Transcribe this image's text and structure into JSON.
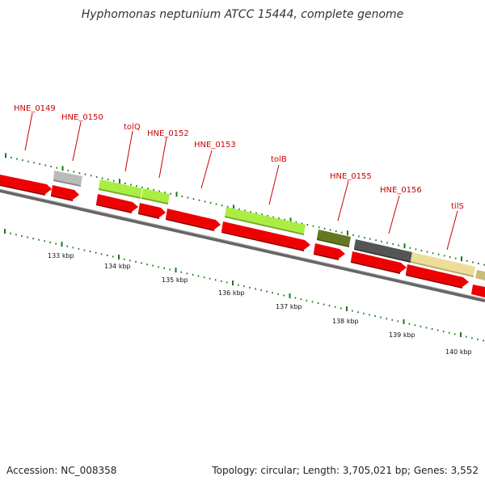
{
  "title": "Hyphomonas neptunium ATCC 15444, complete genome",
  "footer": {
    "accession": "Accession: NC_008358",
    "summary": "Topology: circular; Length: 3,705,021 bp; Genes: 3,552"
  },
  "colors": {
    "cds": "#ee0000",
    "backbone": "#777777",
    "tick": "#1a7a1a",
    "label": "#cc0000",
    "feature_grey": "#bbbbbb",
    "feature_lime": "#aaee44",
    "feature_olive": "#667722",
    "feature_dark": "#555555",
    "feature_cream": "#eedd99"
  },
  "gene_labels": [
    "HNE_0149",
    "HNE_0150",
    "tolQ",
    "HNE_0152",
    "HNE_0153",
    "tolB",
    "HNE_0155",
    "HNE_0156",
    "tilS"
  ],
  "kbp_labels": [
    "133 kbp",
    "134 kbp",
    "135 kbp",
    "136 kbp",
    "137 kbp",
    "138 kbp",
    "139 kbp",
    "140 kbp"
  ]
}
